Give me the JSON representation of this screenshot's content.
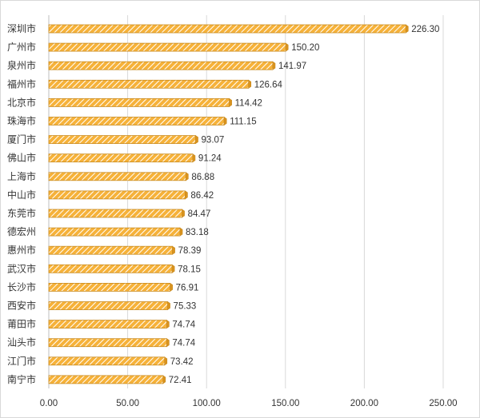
{
  "chart_data": {
    "type": "bar",
    "orientation": "horizontal",
    "title": "",
    "xlabel": "",
    "ylabel": "",
    "categories": [
      "深圳市",
      "广州市",
      "泉州市",
      "福州市",
      "北京市",
      "珠海市",
      "厦门市",
      "佛山市",
      "上海市",
      "中山市",
      "东莞市",
      "德宏州",
      "惠州市",
      "武汉市",
      "长沙市",
      "西安市",
      "莆田市",
      "汕头市",
      "江门市",
      "南宁市"
    ],
    "values": [
      226.3,
      150.2,
      141.97,
      126.64,
      114.42,
      111.15,
      93.07,
      91.24,
      86.88,
      86.42,
      84.47,
      83.18,
      78.39,
      78.15,
      76.91,
      75.33,
      74.74,
      74.74,
      73.42,
      72.41
    ],
    "value_labels": [
      "226.30",
      "150.20",
      "141.97",
      "126.64",
      "114.42",
      "111.15",
      "93.07",
      "91.24",
      "86.88",
      "86.42",
      "84.47",
      "83.18",
      "78.39",
      "78.15",
      "76.91",
      "75.33",
      "74.74",
      "74.74",
      "73.42",
      "72.41"
    ],
    "xlim": [
      0,
      250
    ],
    "x_ticks": [
      "0.00",
      "50.00",
      "100.00",
      "150.00",
      "200.00",
      "250.00"
    ],
    "grid": "vertical",
    "legend": "none",
    "colors": {
      "bar_fill": "#f6b23a",
      "bar_stripe": "#ffffff",
      "bar_edge": "#c98a1e",
      "gridline": "#d9d9d9",
      "text": "#333333"
    }
  }
}
